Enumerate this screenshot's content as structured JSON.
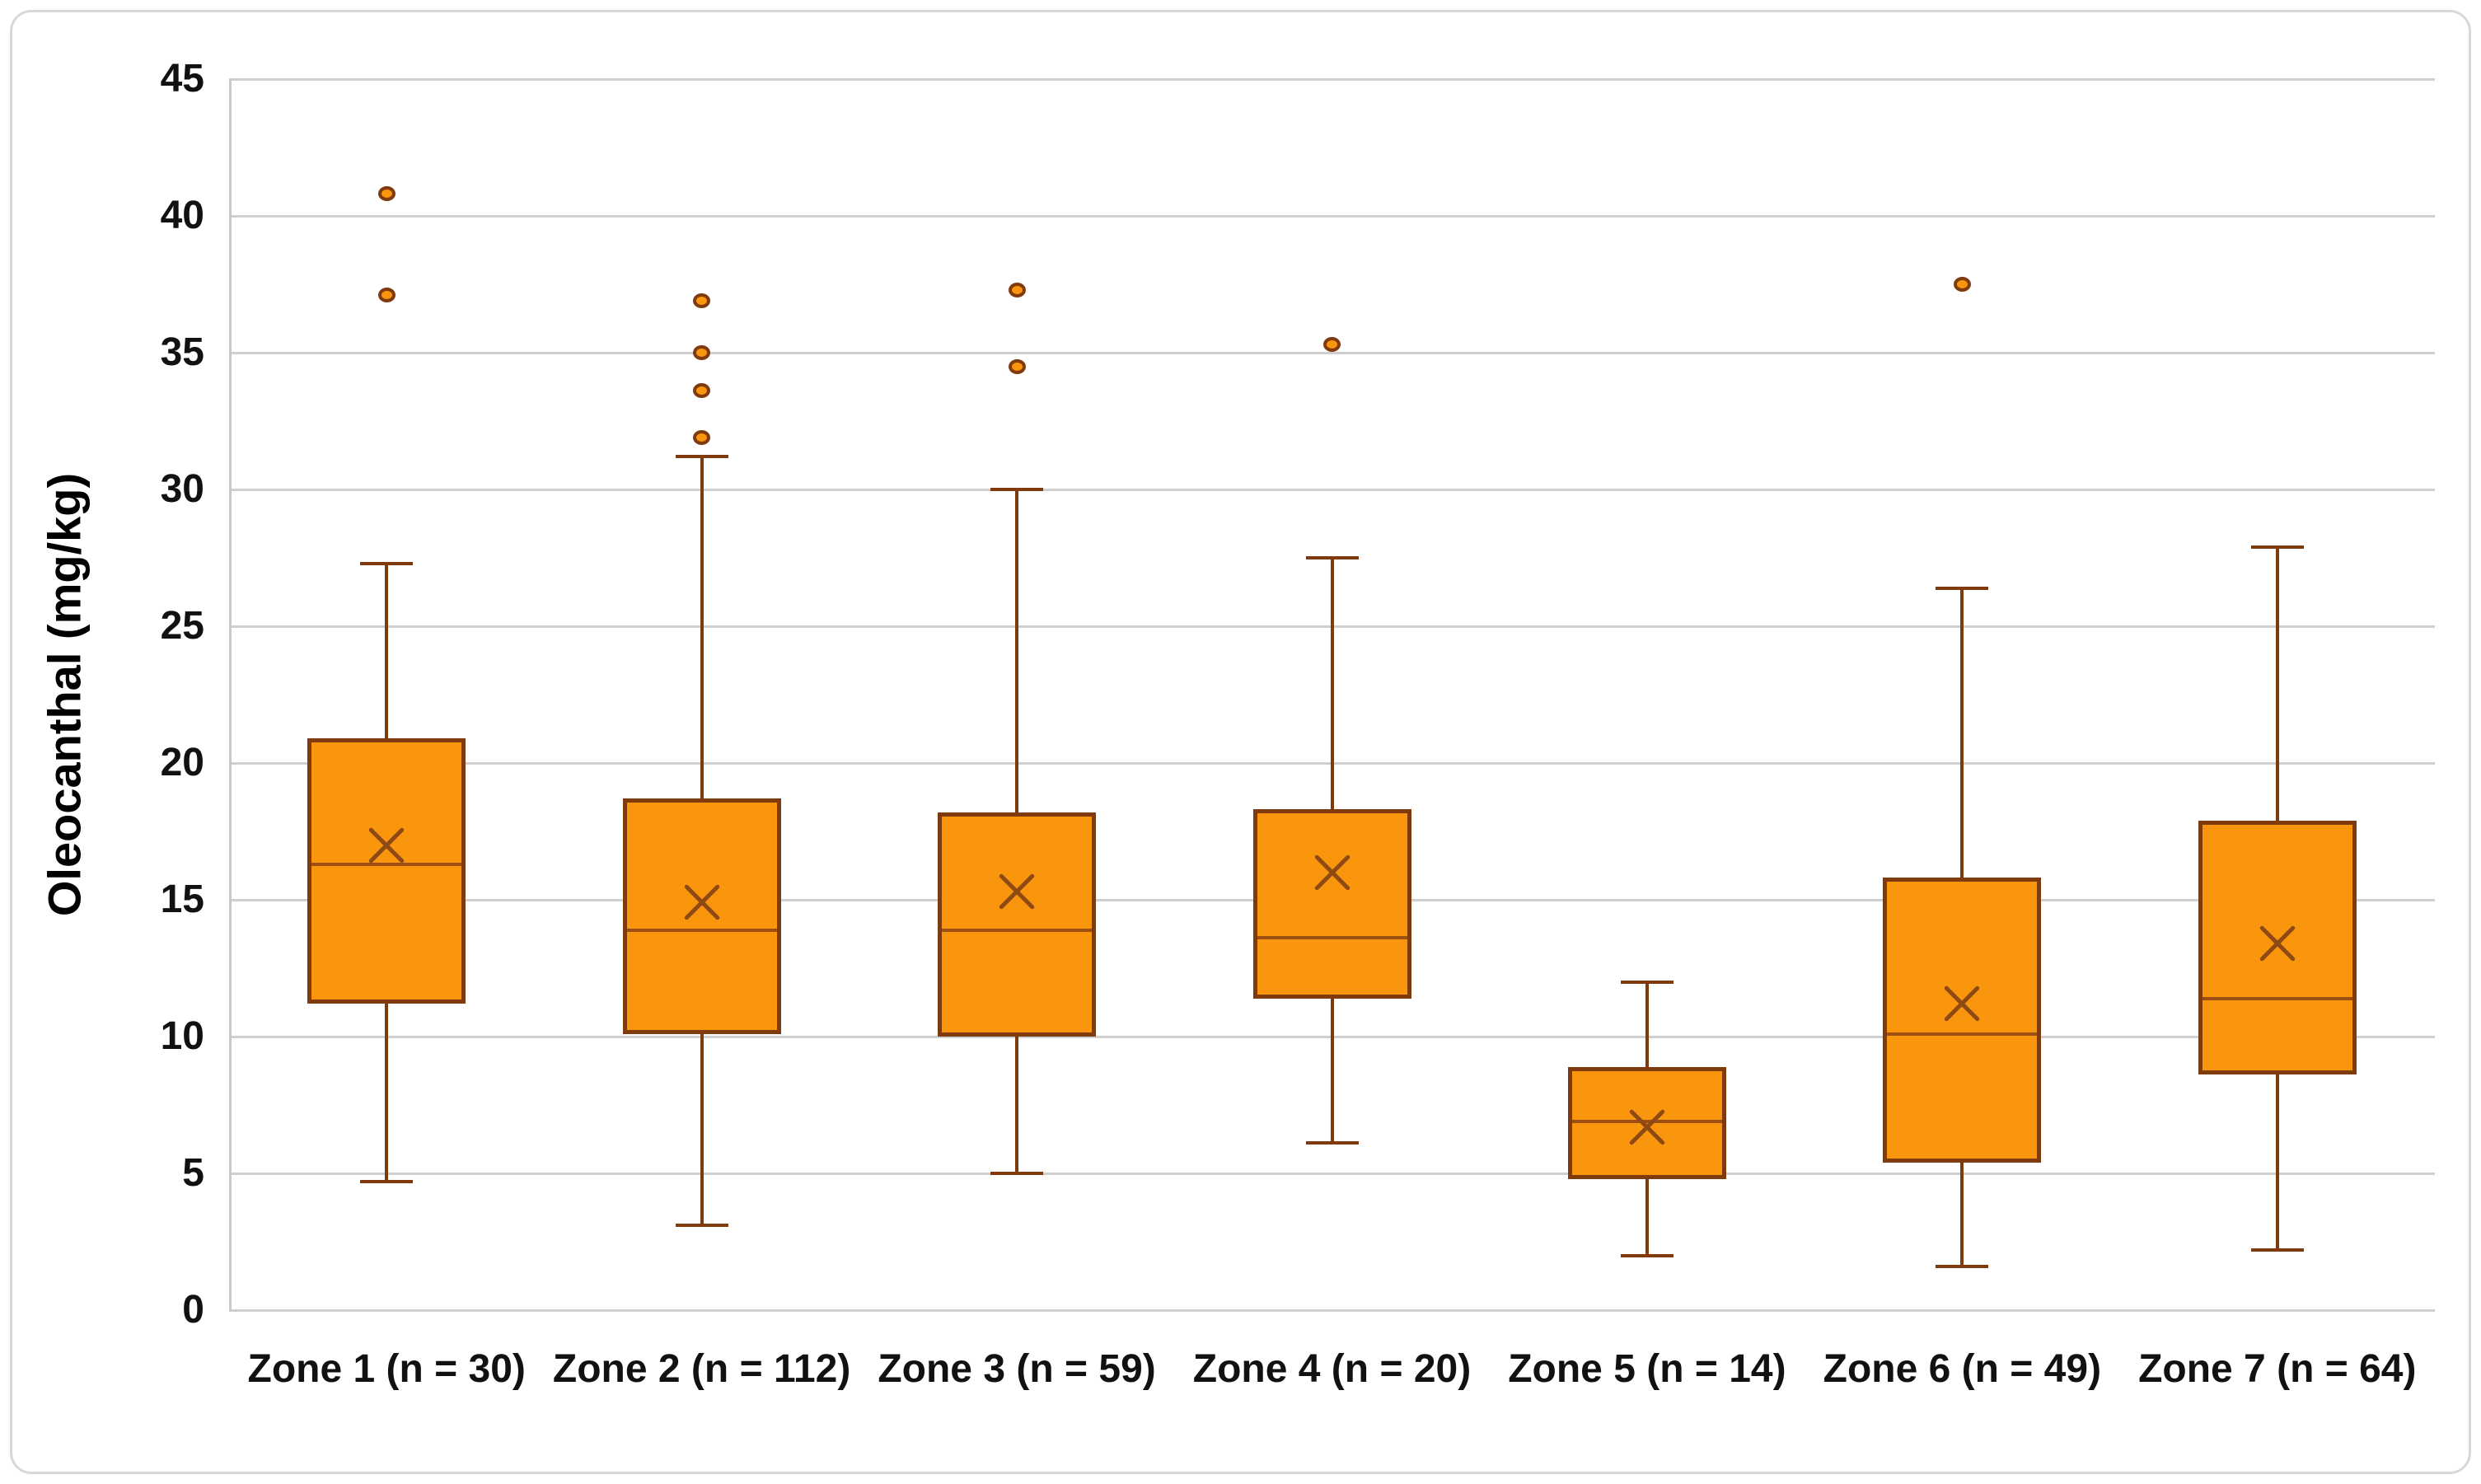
{
  "chart_data": {
    "type": "boxplot",
    "title": "",
    "xlabel": "",
    "ylabel": "Oleocanthal (mg/kg)",
    "ylim": [
      0,
      45
    ],
    "ytick_step": 5,
    "yticks": [
      0,
      5,
      10,
      15,
      20,
      25,
      30,
      35,
      40,
      45
    ],
    "grid": "horizontal",
    "legend_position": "none",
    "categories": [
      "Zone 1 (n = 30)",
      "Zone 2 (n = 112)",
      "Zone 3 (n = 59)",
      "Zone 4 (n = 20)",
      "Zone 5 (n = 14)",
      "Zone 6 (n = 49)",
      "Zone 7 (n = 64)"
    ],
    "series": [
      {
        "name": "Zone 1",
        "n": 30,
        "whisker_low": 4.7,
        "q1": 11.2,
        "median": 16.3,
        "mean": 17.0,
        "q3": 20.9,
        "whisker_high": 27.3,
        "outliers": [
          37.1,
          40.8
        ]
      },
      {
        "name": "Zone 2",
        "n": 112,
        "whisker_low": 3.1,
        "q1": 10.1,
        "median": 13.9,
        "mean": 14.9,
        "q3": 18.7,
        "whisker_high": 31.2,
        "outliers": [
          31.9,
          33.6,
          35.0,
          36.9
        ]
      },
      {
        "name": "Zone 3",
        "n": 59,
        "whisker_low": 5.0,
        "q1": 10.0,
        "median": 13.9,
        "mean": 15.3,
        "q3": 18.2,
        "whisker_high": 30.0,
        "outliers": [
          34.5,
          37.3
        ]
      },
      {
        "name": "Zone 4",
        "n": 20,
        "whisker_low": 6.1,
        "q1": 11.4,
        "median": 13.6,
        "mean": 16.0,
        "q3": 18.3,
        "whisker_high": 27.5,
        "outliers": [
          35.3
        ]
      },
      {
        "name": "Zone 5",
        "n": 14,
        "whisker_low": 2.0,
        "q1": 4.8,
        "median": 6.9,
        "mean": 6.7,
        "q3": 8.9,
        "whisker_high": 12.0,
        "outliers": []
      },
      {
        "name": "Zone 6",
        "n": 49,
        "whisker_low": 1.6,
        "q1": 5.4,
        "median": 10.1,
        "mean": 11.2,
        "q3": 15.8,
        "whisker_high": 26.4,
        "outliers": [
          37.5
        ]
      },
      {
        "name": "Zone 7",
        "n": 64,
        "whisker_low": 2.2,
        "q1": 8.6,
        "median": 11.4,
        "mean": 13.4,
        "q3": 17.9,
        "whisker_high": 27.9,
        "outliers": []
      }
    ],
    "colors": {
      "box_fill": "#F9960E",
      "box_border": "#7F3A0E",
      "whisker": "#7F3A0E",
      "median_line": "#9C4F12",
      "mean_marker": "#8E4A12",
      "outlier_fill": "#F9960E",
      "outlier_border": "#7F3A0E",
      "gridline": "#CFCFCF",
      "axis_line": "#C9C9C9",
      "text": "#111111",
      "figure_border": "#D8D8D8",
      "background": "#FFFFFF"
    }
  }
}
